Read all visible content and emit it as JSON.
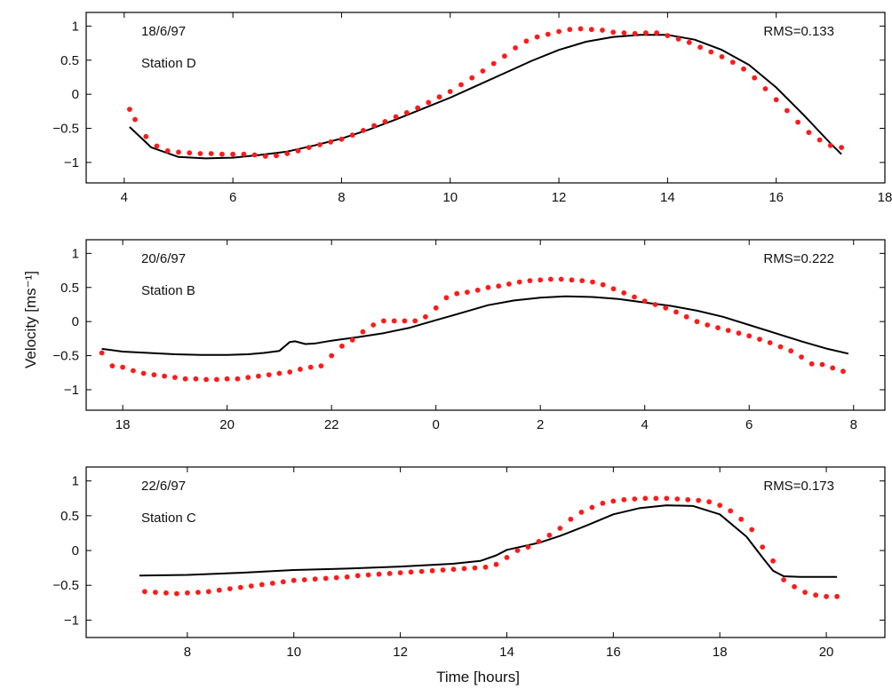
{
  "ylabel": "Velocity [ms⁻¹]",
  "xlabel": "Time [hours]",
  "colors": {
    "observed": "#ff1a1a",
    "model": "#000000",
    "axes": "#000000"
  },
  "chart_data": [
    {
      "type": "line",
      "date": "18/6/97",
      "station": "Station D",
      "rms": "RMS=0.133",
      "xlim": [
        3.3,
        18.0
      ],
      "ylim": [
        -1.3,
        1.2
      ],
      "xticks": [
        4,
        6,
        8,
        10,
        12,
        14,
        16,
        18
      ],
      "xtick_labels": [
        "4",
        "6",
        "8",
        "10",
        "12",
        "14",
        "16",
        "18"
      ],
      "yticks": [
        1,
        0.5,
        0,
        -0.5,
        -1
      ],
      "ytick_labels": [
        "1",
        "0.5",
        "0",
        "−0.5",
        "−1"
      ],
      "series": [
        {
          "style": "line",
          "x": [
            4.1,
            4.5,
            5.0,
            5.5,
            6.0,
            6.5,
            7.0,
            7.5,
            8.0,
            8.5,
            9.0,
            9.5,
            10.0,
            10.5,
            11.0,
            11.5,
            12.0,
            12.5,
            13.0,
            13.5,
            14.0,
            14.5,
            15.0,
            15.5,
            16.0,
            16.5,
            17.0,
            17.2
          ],
          "y": [
            -0.48,
            -0.78,
            -0.92,
            -0.94,
            -0.93,
            -0.89,
            -0.84,
            -0.75,
            -0.65,
            -0.52,
            -0.37,
            -0.21,
            -0.05,
            0.13,
            0.31,
            0.49,
            0.65,
            0.77,
            0.84,
            0.87,
            0.87,
            0.8,
            0.65,
            0.43,
            0.1,
            -0.3,
            -0.72,
            -0.88
          ]
        },
        {
          "style": "dots",
          "x": [
            4.1,
            4.2,
            4.4,
            4.6,
            4.8,
            5.0,
            5.2,
            5.4,
            5.6,
            5.8,
            6.0,
            6.2,
            6.4,
            6.6,
            6.8,
            7.0,
            7.2,
            7.4,
            7.6,
            7.8,
            8.0,
            8.2,
            8.4,
            8.6,
            8.8,
            9.0,
            9.2,
            9.4,
            9.6,
            9.8,
            10.0,
            10.2,
            10.4,
            10.6,
            10.8,
            11.0,
            11.2,
            11.4,
            11.6,
            11.8,
            12.0,
            12.2,
            12.4,
            12.6,
            12.8,
            13.0,
            13.2,
            13.4,
            13.6,
            13.8,
            14.0,
            14.2,
            14.4,
            14.6,
            14.8,
            15.0,
            15.2,
            15.4,
            15.6,
            15.8,
            16.0,
            16.2,
            16.4,
            16.6,
            16.8,
            17.0,
            17.2
          ],
          "y": [
            -0.22,
            -0.37,
            -0.62,
            -0.76,
            -0.83,
            -0.85,
            -0.86,
            -0.87,
            -0.87,
            -0.88,
            -0.88,
            -0.88,
            -0.89,
            -0.91,
            -0.9,
            -0.87,
            -0.83,
            -0.78,
            -0.74,
            -0.7,
            -0.66,
            -0.6,
            -0.53,
            -0.46,
            -0.4,
            -0.33,
            -0.27,
            -0.2,
            -0.12,
            -0.04,
            0.04,
            0.14,
            0.24,
            0.34,
            0.45,
            0.56,
            0.68,
            0.78,
            0.84,
            0.88,
            0.92,
            0.95,
            0.96,
            0.95,
            0.94,
            0.91,
            0.9,
            0.89,
            0.9,
            0.9,
            0.86,
            0.81,
            0.76,
            0.69,
            0.62,
            0.55,
            0.47,
            0.37,
            0.24,
            0.08,
            -0.08,
            -0.24,
            -0.41,
            -0.56,
            -0.67,
            -0.75,
            -0.78
          ]
        }
      ]
    },
    {
      "type": "line",
      "date": "20/6/97",
      "station": "Station B",
      "rms": "RMS=0.222",
      "xlim": [
        17.3,
        32.6
      ],
      "ylim": [
        -1.3,
        1.2
      ],
      "xticks": [
        18,
        20,
        22,
        24,
        26,
        28,
        30,
        32
      ],
      "xtick_labels": [
        "18",
        "20",
        "22",
        "0",
        "2",
        "4",
        "6",
        "8"
      ],
      "yticks": [
        1,
        0.5,
        0,
        -0.5,
        -1
      ],
      "ytick_labels": [
        "1",
        "0.5",
        "0",
        "−0.5",
        "−1"
      ],
      "series": [
        {
          "style": "line",
          "x": [
            17.6,
            18.0,
            18.5,
            19.0,
            19.5,
            20.0,
            20.4,
            20.7,
            21.0,
            21.2,
            21.3,
            21.5,
            21.7,
            22.0,
            22.5,
            23.0,
            23.5,
            24.0,
            24.5,
            25.0,
            25.5,
            26.0,
            26.5,
            27.0,
            27.5,
            28.0,
            28.5,
            29.0,
            29.5,
            30.0,
            30.5,
            31.0,
            31.5,
            31.9
          ],
          "y": [
            -0.4,
            -0.44,
            -0.46,
            -0.48,
            -0.49,
            -0.49,
            -0.48,
            -0.46,
            -0.43,
            -0.3,
            -0.29,
            -0.33,
            -0.32,
            -0.28,
            -0.23,
            -0.17,
            -0.09,
            0.02,
            0.13,
            0.24,
            0.31,
            0.35,
            0.37,
            0.36,
            0.33,
            0.28,
            0.23,
            0.16,
            0.07,
            -0.05,
            -0.17,
            -0.29,
            -0.4,
            -0.47
          ]
        },
        {
          "style": "dots",
          "x": [
            17.6,
            17.8,
            18.0,
            18.2,
            18.4,
            18.6,
            18.8,
            19.0,
            19.2,
            19.4,
            19.6,
            19.8,
            20.0,
            20.2,
            20.4,
            20.6,
            20.8,
            21.0,
            21.2,
            21.4,
            21.6,
            21.8,
            22.0,
            22.2,
            22.4,
            22.6,
            22.8,
            23.0,
            23.2,
            23.4,
            23.6,
            23.8,
            24.0,
            24.2,
            24.4,
            24.6,
            24.8,
            25.0,
            25.2,
            25.4,
            25.6,
            25.8,
            26.0,
            26.2,
            26.4,
            26.6,
            26.8,
            27.0,
            27.2,
            27.4,
            27.6,
            27.8,
            28.0,
            28.2,
            28.4,
            28.6,
            28.8,
            29.0,
            29.2,
            29.4,
            29.6,
            29.8,
            30.0,
            30.2,
            30.4,
            30.6,
            30.8,
            31.0,
            31.2,
            31.4,
            31.6,
            31.8
          ],
          "y": [
            -0.46,
            -0.65,
            -0.67,
            -0.72,
            -0.76,
            -0.78,
            -0.8,
            -0.82,
            -0.84,
            -0.84,
            -0.85,
            -0.85,
            -0.84,
            -0.84,
            -0.82,
            -0.8,
            -0.78,
            -0.76,
            -0.74,
            -0.7,
            -0.67,
            -0.65,
            -0.5,
            -0.36,
            -0.27,
            -0.15,
            -0.05,
            0.01,
            0.01,
            0.01,
            0.01,
            0.07,
            0.2,
            0.35,
            0.41,
            0.43,
            0.46,
            0.5,
            0.52,
            0.55,
            0.58,
            0.6,
            0.61,
            0.62,
            0.62,
            0.61,
            0.6,
            0.58,
            0.54,
            0.48,
            0.42,
            0.36,
            0.3,
            0.25,
            0.2,
            0.14,
            0.07,
            0.0,
            -0.05,
            -0.09,
            -0.13,
            -0.17,
            -0.21,
            -0.26,
            -0.31,
            -0.37,
            -0.43,
            -0.52,
            -0.62,
            -0.63,
            -0.68,
            -0.73
          ]
        }
      ]
    },
    {
      "type": "line",
      "date": "22/6/97",
      "station": "Station C",
      "rms": "RMS=0.173",
      "xlim": [
        6.1,
        21.1
      ],
      "ylim": [
        -1.25,
        1.2
      ],
      "xticks": [
        8,
        10,
        12,
        14,
        16,
        18,
        20
      ],
      "xtick_labels": [
        "8",
        "10",
        "12",
        "14",
        "16",
        "18",
        "20"
      ],
      "yticks": [
        1,
        0.5,
        0,
        -0.5,
        -1
      ],
      "ytick_labels": [
        "1",
        "0.5",
        "0",
        "−0.5",
        "−1"
      ],
      "series": [
        {
          "style": "line",
          "x": [
            7.1,
            8.0,
            9.0,
            10.0,
            11.0,
            12.0,
            13.0,
            13.5,
            13.8,
            14.0,
            14.3,
            14.6,
            15.0,
            15.5,
            16.0,
            16.5,
            17.0,
            17.5,
            18.0,
            18.5,
            18.8,
            19.0,
            19.2,
            19.5,
            20.0,
            20.2
          ],
          "y": [
            -0.36,
            -0.35,
            -0.32,
            -0.28,
            -0.26,
            -0.23,
            -0.19,
            -0.15,
            -0.07,
            0.01,
            0.06,
            0.11,
            0.21,
            0.36,
            0.52,
            0.61,
            0.65,
            0.64,
            0.52,
            0.2,
            -0.1,
            -0.29,
            -0.37,
            -0.38,
            -0.38,
            -0.38
          ]
        },
        {
          "style": "dots",
          "x": [
            7.2,
            7.4,
            7.6,
            7.8,
            8.0,
            8.2,
            8.4,
            8.6,
            8.8,
            9.0,
            9.2,
            9.4,
            9.6,
            9.8,
            10.0,
            10.2,
            10.4,
            10.6,
            10.8,
            11.0,
            11.2,
            11.4,
            11.6,
            11.8,
            12.0,
            12.2,
            12.4,
            12.6,
            12.8,
            13.0,
            13.2,
            13.4,
            13.6,
            13.8,
            14.0,
            14.2,
            14.4,
            14.6,
            14.8,
            15.0,
            15.2,
            15.4,
            15.6,
            15.8,
            16.0,
            16.2,
            16.4,
            16.6,
            16.8,
            17.0,
            17.2,
            17.4,
            17.6,
            17.8,
            18.0,
            18.2,
            18.4,
            18.6,
            18.8,
            19.0,
            19.2,
            19.4,
            19.6,
            19.8,
            20.0,
            20.2
          ],
          "y": [
            -0.59,
            -0.6,
            -0.61,
            -0.62,
            -0.61,
            -0.6,
            -0.59,
            -0.57,
            -0.55,
            -0.53,
            -0.51,
            -0.49,
            -0.47,
            -0.45,
            -0.43,
            -0.42,
            -0.41,
            -0.4,
            -0.39,
            -0.38,
            -0.36,
            -0.35,
            -0.34,
            -0.33,
            -0.32,
            -0.31,
            -0.3,
            -0.29,
            -0.28,
            -0.27,
            -0.26,
            -0.25,
            -0.24,
            -0.2,
            -0.1,
            0.0,
            0.05,
            0.13,
            0.22,
            0.32,
            0.45,
            0.55,
            0.62,
            0.68,
            0.71,
            0.73,
            0.74,
            0.75,
            0.75,
            0.75,
            0.74,
            0.73,
            0.72,
            0.7,
            0.65,
            0.57,
            0.45,
            0.3,
            0.05,
            -0.15,
            -0.42,
            -0.52,
            -0.6,
            -0.64,
            -0.66,
            -0.66
          ]
        }
      ]
    }
  ]
}
